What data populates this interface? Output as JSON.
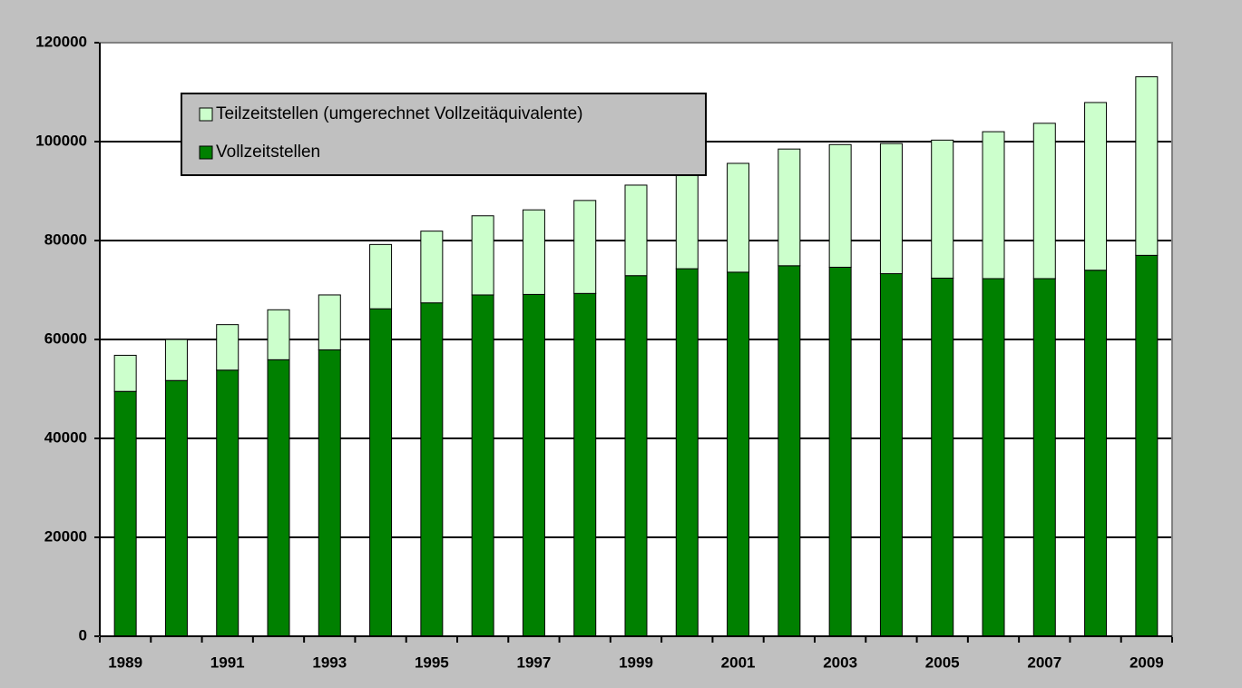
{
  "chart_data": {
    "type": "stacked_bar",
    "categories": [
      "1989",
      null,
      "1991",
      null,
      "1993",
      null,
      "1995",
      null,
      "1997",
      null,
      "1999",
      null,
      "2001",
      null,
      "2003",
      null,
      "2005",
      null,
      "2007",
      null,
      "2009"
    ],
    "series": [
      {
        "name": "Vollzeitstellen",
        "color": "#008000",
        "values": [
          49500,
          51700,
          53800,
          55900,
          57900,
          66200,
          67400,
          69000,
          69100,
          69300,
          72900,
          74300,
          73600,
          74900,
          74600,
          73300,
          72400,
          72300,
          72300,
          74000,
          77000
        ]
      },
      {
        "name": "Teilzeitstellen (umgerechnet Vollzeitäquivalente)",
        "color": "#ccffcc",
        "values": [
          7300,
          8300,
          9200,
          10100,
          11100,
          13000,
          14500,
          16000,
          17100,
          18800,
          18300,
          20100,
          22000,
          23600,
          24800,
          26300,
          27900,
          29700,
          31400,
          33900,
          36100
        ]
      }
    ],
    "ylim": [
      0,
      120000
    ],
    "yticks": [
      0,
      20000,
      40000,
      60000,
      80000,
      100000,
      120000
    ],
    "grid": true
  }
}
